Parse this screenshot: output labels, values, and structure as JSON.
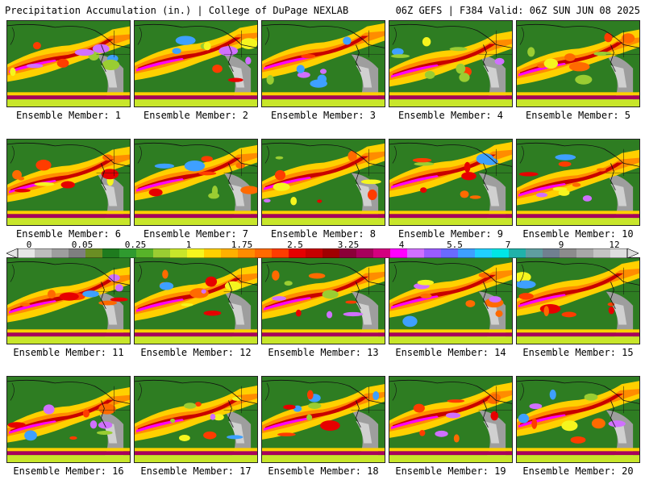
{
  "header": {
    "left": "Precipitation Accumulation (in.) | College of DuPage NEXLAB",
    "right": "06Z GEFS | F384 Valid: 06Z SUN JUN 08 2025"
  },
  "members": [
    "Ensemble Member: 1",
    "Ensemble Member: 2",
    "Ensemble Member: 3",
    "Ensemble Member: 4",
    "Ensemble Member: 5",
    "Ensemble Member: 6",
    "Ensemble Member: 7",
    "Ensemble Member: 8",
    "Ensemble Member: 9",
    "Ensemble Member: 10",
    "Ensemble Member: 11",
    "Ensemble Member: 12",
    "Ensemble Member: 13",
    "Ensemble Member: 14",
    "Ensemble Member: 15",
    "Ensemble Member: 16",
    "Ensemble Member: 17",
    "Ensemble Member: 18",
    "Ensemble Member: 19",
    "Ensemble Member: 20"
  ],
  "legend": {
    "labels": [
      "0",
      "0.05",
      "0.25",
      "1",
      "1.75",
      "2.5",
      "3.25",
      "4",
      "5.5",
      "7",
      "9",
      "12"
    ],
    "colors": [
      "#e6e6e6",
      "#bdbdbd",
      "#9e9e9e",
      "#7f7f7f",
      "#6b8e23",
      "#1e7b1e",
      "#2f9a2f",
      "#57b329",
      "#9acd32",
      "#c8e62a",
      "#f5f51e",
      "#ffd000",
      "#ffb000",
      "#ff8c00",
      "#ff6a00",
      "#ff3c00",
      "#e60000",
      "#c80000",
      "#a00000",
      "#8b0038",
      "#a8005c",
      "#d4007f",
      "#ff00ff",
      "#d070ff",
      "#9a5cff",
      "#6a6aff",
      "#3ea0ff",
      "#20d0ff",
      "#00e6e6",
      "#20b2aa",
      "#5f9ea0",
      "#708090",
      "#8c8c8c",
      "#a8a8a8",
      "#c4c4c4",
      "#dedede"
    ]
  }
}
